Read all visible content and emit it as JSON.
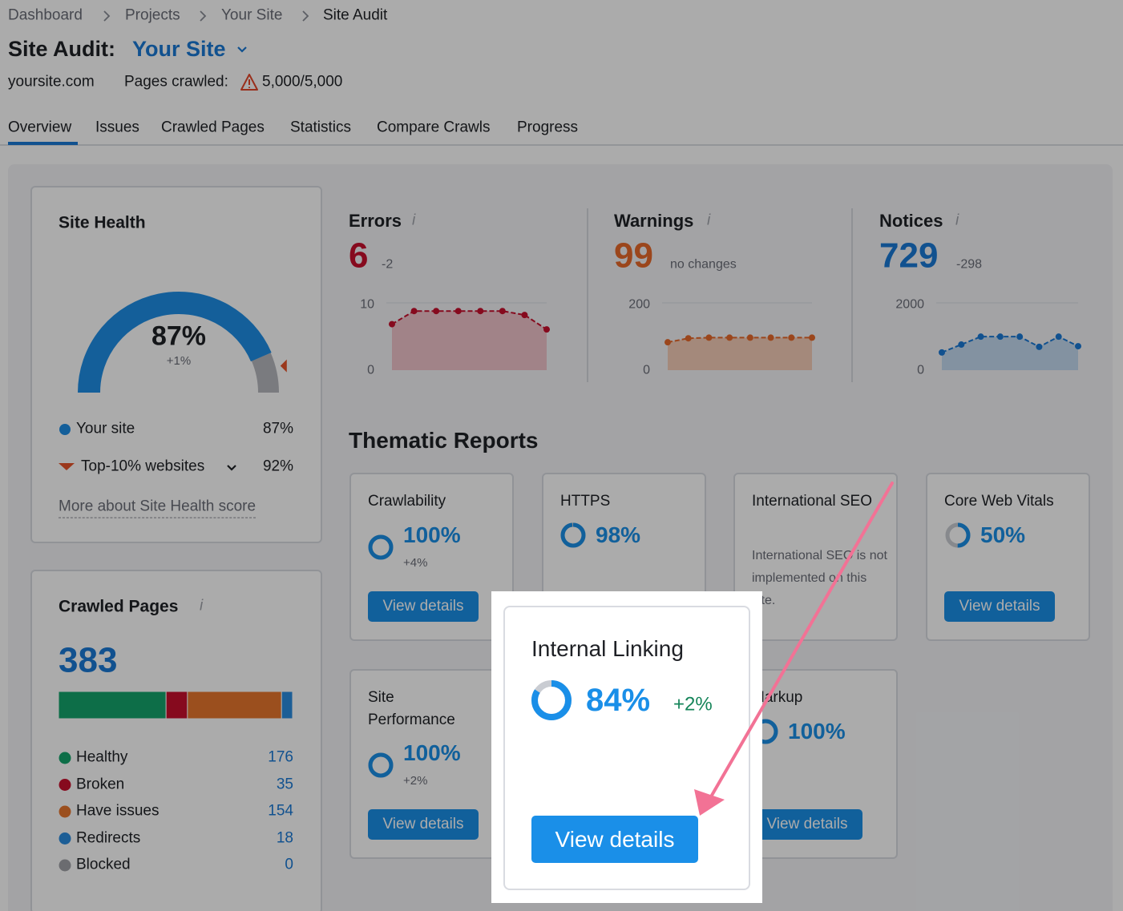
{
  "breadcrumb": [
    "Dashboard",
    "Projects",
    "Your Site",
    "Site Audit"
  ],
  "header": {
    "title": "Site Audit:",
    "site": "Your Site",
    "domain": "yoursite.com",
    "pages_label": "Pages crawled:",
    "pages_value": "5,000/5,000"
  },
  "tabs": [
    "Overview",
    "Issues",
    "Crawled Pages",
    "Statistics",
    "Compare Crawls",
    "Progress"
  ],
  "site_health": {
    "title": "Site Health",
    "score": 87,
    "score_label": "87%",
    "change": "+1%",
    "top10": 92,
    "legend": [
      {
        "label": "Your site",
        "value": "87%",
        "color": "#1f8ee6"
      },
      {
        "label": "Top-10% websites",
        "value": "92%",
        "color": "#e8542b"
      }
    ],
    "link": "More about Site Health score"
  },
  "crawled_pages": {
    "title": "Crawled Pages",
    "total": 383,
    "items": [
      {
        "label": "Healthy",
        "value": 176,
        "color": "#14a56c"
      },
      {
        "label": "Broken",
        "value": 35,
        "color": "#c8102e"
      },
      {
        "label": "Have issues",
        "value": 154,
        "color": "#e8772e"
      },
      {
        "label": "Redirects",
        "value": 18,
        "color": "#2b8ce0"
      },
      {
        "label": "Blocked",
        "value": 0,
        "color": "#a0a2a8"
      }
    ]
  },
  "issues": [
    {
      "title": "Errors",
      "value": 6,
      "change": "-2",
      "color": "#c8102e",
      "fill": "#f0c4cb",
      "ylim": [
        0,
        10
      ],
      "yticks": [
        0,
        10
      ],
      "values": [
        7,
        9,
        9,
        9,
        9,
        9,
        8.4,
        6.2
      ]
    },
    {
      "title": "Warnings",
      "value": 99,
      "change": "no changes",
      "color": "#e8692b",
      "fill": "#f5cdb8",
      "ylim": [
        0,
        200
      ],
      "yticks": [
        0,
        200
      ],
      "values": [
        85,
        97,
        99,
        99,
        99,
        99,
        99,
        99
      ]
    },
    {
      "title": "Notices",
      "value": 729,
      "change": "-298",
      "color": "#1a7ad6",
      "fill": "#c3daf0",
      "ylim": [
        0,
        2000
      ],
      "yticks": [
        0,
        2000
      ],
      "values": [
        540,
        780,
        1020,
        1020,
        1020,
        710,
        1020,
        730
      ]
    }
  ],
  "thematic": {
    "title": "Thematic Reports",
    "cards": [
      {
        "title": "Crawlability",
        "value": 100,
        "value_label": "100%",
        "change": "+4%",
        "button": "View details"
      },
      {
        "title": "HTTPS",
        "value": 98,
        "value_label": "98%"
      },
      {
        "title": "International SEO",
        "note": "International SEO is not implemented on this site."
      },
      {
        "title": "Core Web Vitals",
        "value": 50,
        "value_label": "50%",
        "button": "View details"
      },
      {
        "title": "Site Performance",
        "value": 100,
        "value_label": "100%",
        "change": "+2%",
        "button": "View details"
      },
      {
        "title": "Markup",
        "value": 100,
        "value_label": "100%",
        "button": "View details"
      }
    ]
  },
  "highlight": {
    "title": "Internal Linking",
    "value": 84,
    "value_label": "84%",
    "change": "+2%",
    "button": "View details"
  }
}
